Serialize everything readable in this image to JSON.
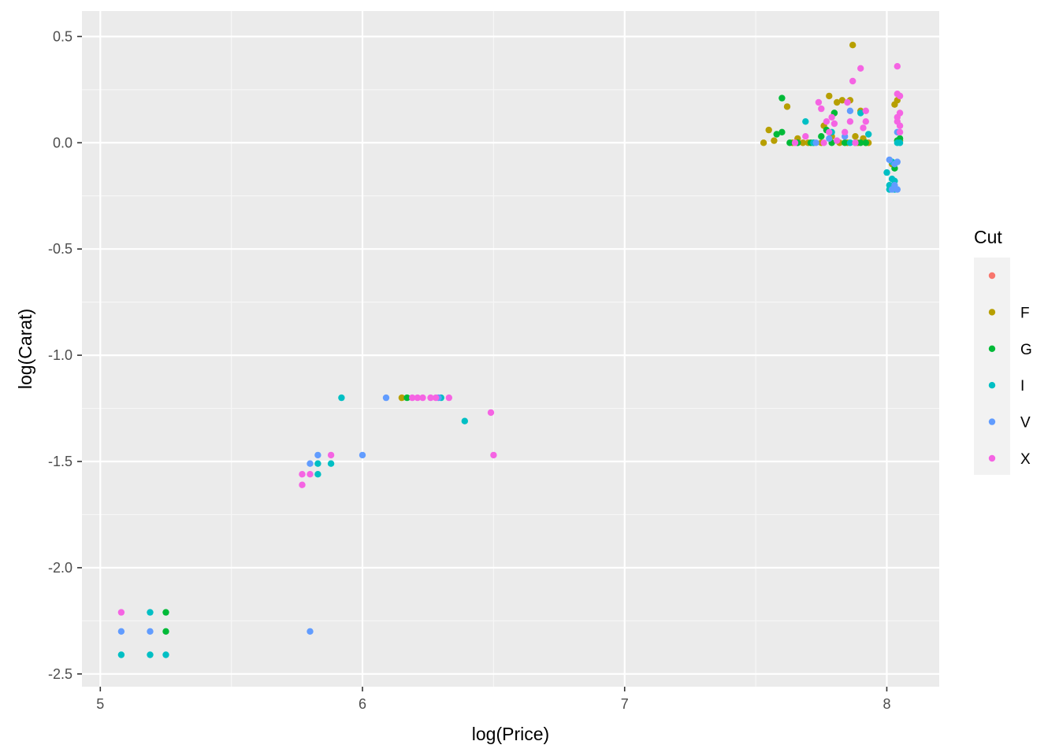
{
  "chart_data": {
    "type": "scatter",
    "title": "",
    "xlabel": "log(Price)",
    "ylabel": "log(Carat)",
    "xlim": [
      4.93,
      8.2
    ],
    "ylim": [
      -2.56,
      0.62
    ],
    "x_ticks": [
      5,
      6,
      7,
      8
    ],
    "x_tick_labels": [
      "5",
      "6",
      "7",
      "8"
    ],
    "y_ticks": [
      0.5,
      0.0,
      -0.5,
      -1.0,
      -1.5,
      -2.0,
      -2.5
    ],
    "y_tick_labels": [
      "0.5",
      "0.0",
      "-0.5",
      "-1.0",
      "-1.5",
      "-2.0",
      "-2.5"
    ],
    "grid": true,
    "legend": {
      "title": "Cut",
      "position": "right",
      "entries": [
        {
          "label": "",
          "color": "#F8766D"
        },
        {
          "label": "F",
          "color": "#B79F00"
        },
        {
          "label": "G",
          "color": "#00BA38"
        },
        {
          "label": "I",
          "color": "#00BFC4"
        },
        {
          "label": "V",
          "color": "#619CFF"
        },
        {
          "label": "X",
          "color": "#F564E3"
        }
      ]
    },
    "series": [
      {
        "color": "#F8766D",
        "points": []
      },
      {
        "color": "#B79F00",
        "points": [
          [
            6.15,
            -1.2
          ],
          [
            7.53,
            0.0
          ],
          [
            7.55,
            0.06
          ],
          [
            7.57,
            0.01
          ],
          [
            7.62,
            0.17
          ],
          [
            7.64,
            0.0
          ],
          [
            7.66,
            0.02
          ],
          [
            7.68,
            0.0
          ],
          [
            7.7,
            0.0
          ],
          [
            7.72,
            0.0
          ],
          [
            7.75,
            0.0
          ],
          [
            7.76,
            0.08
          ],
          [
            7.78,
            0.22
          ],
          [
            7.79,
            0.03
          ],
          [
            7.8,
            0.14
          ],
          [
            7.81,
            0.19
          ],
          [
            7.82,
            0.0
          ],
          [
            7.83,
            0.2
          ],
          [
            7.85,
            0.0
          ],
          [
            7.86,
            0.2
          ],
          [
            7.87,
            0.46
          ],
          [
            7.88,
            0.03
          ],
          [
            7.89,
            0.0
          ],
          [
            7.9,
            0.15
          ],
          [
            7.91,
            0.02
          ],
          [
            7.92,
            0.0
          ],
          [
            7.93,
            0.0
          ],
          [
            8.02,
            -0.1
          ],
          [
            8.03,
            0.18
          ],
          [
            8.04,
            0.2
          ],
          [
            8.05,
            0.01
          ]
        ]
      },
      {
        "color": "#00BA38",
        "points": [
          [
            5.25,
            -2.21
          ],
          [
            5.25,
            -2.3
          ],
          [
            6.17,
            -1.2
          ],
          [
            7.58,
            0.04
          ],
          [
            7.6,
            0.05
          ],
          [
            7.6,
            0.21
          ],
          [
            7.63,
            0.0
          ],
          [
            7.66,
            0.0
          ],
          [
            7.71,
            0.0
          ],
          [
            7.75,
            0.03
          ],
          [
            7.77,
            0.06
          ],
          [
            7.79,
            0.0
          ],
          [
            7.8,
            0.14
          ],
          [
            7.84,
            0.0
          ],
          [
            7.88,
            0.0
          ],
          [
            7.9,
            0.0
          ],
          [
            7.92,
            0.0
          ],
          [
            8.03,
            -0.12
          ],
          [
            8.04,
            0.01
          ],
          [
            8.05,
            0.02
          ]
        ]
      },
      {
        "color": "#00BFC4",
        "points": [
          [
            5.08,
            -2.41
          ],
          [
            5.19,
            -2.21
          ],
          [
            5.19,
            -2.41
          ],
          [
            5.25,
            -2.41
          ],
          [
            5.83,
            -1.51
          ],
          [
            5.83,
            -1.56
          ],
          [
            5.88,
            -1.51
          ],
          [
            5.92,
            -1.2
          ],
          [
            6.3,
            -1.2
          ],
          [
            6.39,
            -1.31
          ],
          [
            7.69,
            0.1
          ],
          [
            7.72,
            0.0
          ],
          [
            7.79,
            0.05
          ],
          [
            7.86,
            0.0
          ],
          [
            7.9,
            0.14
          ],
          [
            7.93,
            0.04
          ],
          [
            8.0,
            -0.14
          ],
          [
            8.01,
            -0.2
          ],
          [
            8.01,
            -0.22
          ],
          [
            8.02,
            -0.17
          ],
          [
            8.02,
            -0.09
          ],
          [
            8.03,
            -0.22
          ],
          [
            8.03,
            -0.18
          ],
          [
            8.04,
            0.0
          ],
          [
            8.05,
            0.0
          ]
        ]
      },
      {
        "color": "#619CFF",
        "points": [
          [
            5.08,
            -2.3
          ],
          [
            5.19,
            -2.3
          ],
          [
            5.8,
            -2.3
          ],
          [
            5.8,
            -1.51
          ],
          [
            5.83,
            -1.47
          ],
          [
            6.0,
            -1.47
          ],
          [
            6.09,
            -1.2
          ],
          [
            6.29,
            -1.2
          ],
          [
            7.73,
            0.0
          ],
          [
            7.78,
            0.02
          ],
          [
            7.84,
            0.03
          ],
          [
            7.86,
            0.15
          ],
          [
            8.01,
            -0.08
          ],
          [
            8.02,
            -0.22
          ],
          [
            8.03,
            -0.1
          ],
          [
            8.03,
            -0.2
          ],
          [
            8.04,
            -0.22
          ],
          [
            8.04,
            0.05
          ],
          [
            8.04,
            -0.09
          ]
        ]
      },
      {
        "color": "#F564E3",
        "points": [
          [
            5.08,
            -2.21
          ],
          [
            5.77,
            -1.56
          ],
          [
            5.77,
            -1.61
          ],
          [
            5.8,
            -1.56
          ],
          [
            5.88,
            -1.47
          ],
          [
            6.19,
            -1.2
          ],
          [
            6.21,
            -1.2
          ],
          [
            6.23,
            -1.2
          ],
          [
            6.26,
            -1.2
          ],
          [
            6.28,
            -1.2
          ],
          [
            6.33,
            -1.2
          ],
          [
            6.49,
            -1.27
          ],
          [
            6.5,
            -1.47
          ],
          [
            7.65,
            0.0
          ],
          [
            7.69,
            0.03
          ],
          [
            7.74,
            0.19
          ],
          [
            7.75,
            0.16
          ],
          [
            7.76,
            0.0
          ],
          [
            7.77,
            0.1
          ],
          [
            7.78,
            0.05
          ],
          [
            7.79,
            0.12
          ],
          [
            7.8,
            0.09
          ],
          [
            7.81,
            0.01
          ],
          [
            7.84,
            0.05
          ],
          [
            7.85,
            0.19
          ],
          [
            7.86,
            0.1
          ],
          [
            7.87,
            0.29
          ],
          [
            7.88,
            0.0
          ],
          [
            7.9,
            0.35
          ],
          [
            7.91,
            0.07
          ],
          [
            7.92,
            0.1
          ],
          [
            7.92,
            0.15
          ],
          [
            8.04,
            0.36
          ],
          [
            8.04,
            0.23
          ],
          [
            8.04,
            0.12
          ],
          [
            8.05,
            0.22
          ],
          [
            8.05,
            0.14
          ],
          [
            8.05,
            0.08
          ],
          [
            8.04,
            0.1
          ],
          [
            8.05,
            0.05
          ]
        ]
      }
    ]
  }
}
